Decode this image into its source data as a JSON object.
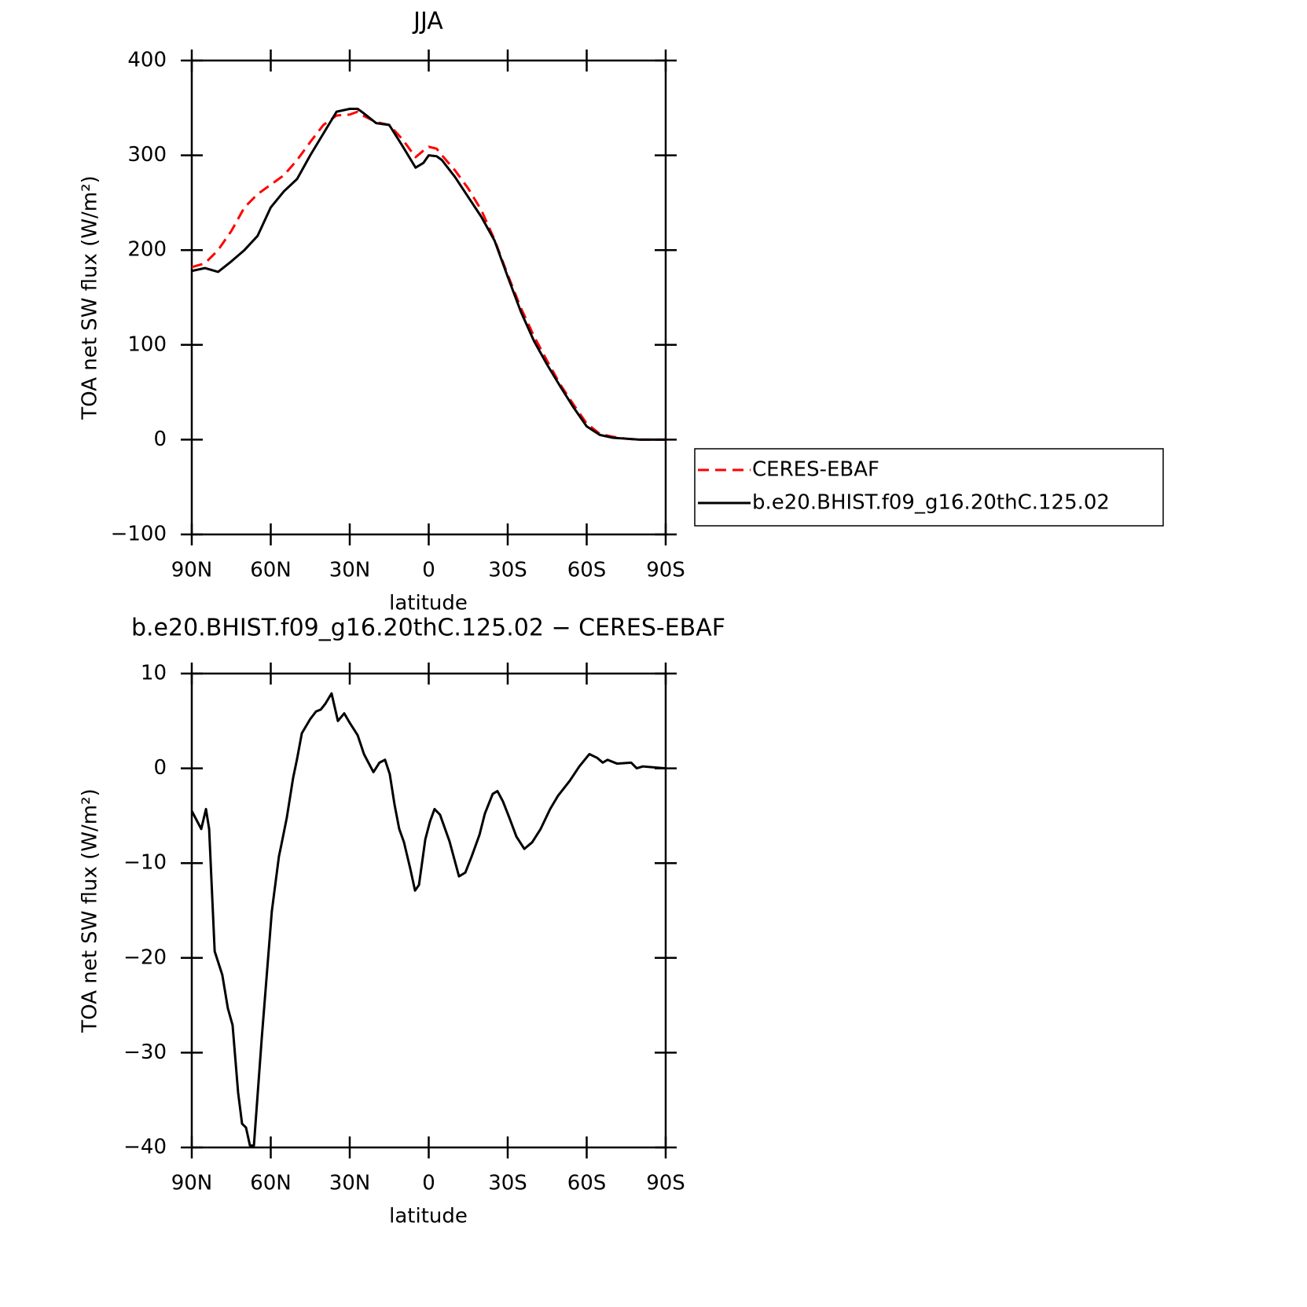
{
  "chart_data": [
    {
      "type": "line",
      "title": "JJA",
      "xlabel": "latitude",
      "ylabel": "TOA net SW flux (W/m²)",
      "xlim": [
        90,
        -90
      ],
      "xticks": [
        {
          "value": 90,
          "label": "90N"
        },
        {
          "value": 60,
          "label": "60N"
        },
        {
          "value": 30,
          "label": "30N"
        },
        0,
        {
          "value": -30,
          "label": "30S"
        },
        {
          "value": -60,
          "label": "60S"
        },
        {
          "value": -90,
          "label": "90S"
        }
      ],
      "ylim": [
        -100,
        400
      ],
      "yticks": [
        {
          "value": -100,
          "label": "−100"
        },
        0,
        100,
        200,
        300,
        400
      ],
      "legend_position": "right",
      "x": [
        90,
        85,
        80,
        75,
        70,
        65,
        60,
        55,
        50,
        45,
        40,
        35,
        30,
        27,
        25,
        20,
        15,
        10,
        5,
        2,
        0,
        -3,
        -5,
        -10,
        -15,
        -20,
        -25,
        -30,
        -35,
        -40,
        -45,
        -50,
        -55,
        -60,
        -65,
        -70,
        -75,
        -80,
        -85,
        -90
      ],
      "series": [
        {
          "name": "CERES-EBAF",
          "color": "#ff0000",
          "dash": "dashed",
          "values": [
            182,
            186,
            200,
            220,
            245,
            259,
            269,
            279,
            295,
            314,
            332,
            342,
            343,
            346,
            342,
            335,
            332,
            317,
            298,
            305,
            309,
            307,
            300,
            284,
            265,
            242,
            211,
            174,
            139,
            109,
            83,
            58,
            37,
            17,
            6,
            3,
            1,
            0,
            0,
            0
          ]
        },
        {
          "name": "b.e20.BHIST.f09_g16.20thC.125.02",
          "color": "#000000",
          "dash": "solid",
          "values": [
            178,
            181,
            177,
            188,
            200,
            215,
            245,
            262,
            275,
            300,
            323,
            346,
            349,
            349,
            345,
            334,
            332,
            310,
            287,
            292,
            300,
            299,
            295,
            277,
            256,
            235,
            210,
            172,
            135,
            104,
            79,
            56,
            34,
            14,
            5,
            2,
            1,
            0,
            0,
            0
          ]
        }
      ]
    },
    {
      "type": "line",
      "title": "b.e20.BHIST.f09_g16.20thC.125.02 − CERES-EBAF",
      "xlabel": "latitude",
      "ylabel": "TOA net SW flux (W/m²)",
      "xlim": [
        90,
        -90
      ],
      "xticks": [
        {
          "value": 90,
          "label": "90N"
        },
        {
          "value": 60,
          "label": "60N"
        },
        {
          "value": 30,
          "label": "30N"
        },
        0,
        {
          "value": -30,
          "label": "30S"
        },
        {
          "value": -60,
          "label": "60S"
        },
        {
          "value": -90,
          "label": "90S"
        }
      ],
      "ylim": [
        -40,
        10
      ],
      "yticks": [
        {
          "value": -40,
          "label": "−40"
        },
        {
          "value": -30,
          "label": "−30"
        },
        {
          "value": -20,
          "label": "−20"
        },
        {
          "value": -10,
          "label": "−10"
        },
        0,
        10
      ],
      "x": [
        90,
        86.4,
        84.6,
        83.4,
        81.3,
        78.4,
        76.3,
        74.5,
        72.4,
        70.9,
        69.4,
        67.9,
        66.4,
        63.4,
        59.6,
        56.9,
        56,
        53.9,
        51.5,
        50,
        48.2,
        45,
        42.8,
        41,
        39.3,
        36.9,
        34.5,
        32.1,
        30,
        27,
        24.6,
        21,
        18.7,
        16.6,
        14.8,
        13,
        11.2,
        9.4,
        7,
        5.2,
        3.7,
        1.3,
        -0.5,
        -2.2,
        -4.3,
        -7.9,
        -11.5,
        -13.9,
        -16.3,
        -19.3,
        -21.3,
        -24.3,
        -26.1,
        -28.2,
        -30.6,
        -33.3,
        -36.3,
        -39.3,
        -42.5,
        -46.1,
        -49.1,
        -53.6,
        -57.2,
        -61,
        -64,
        -66.1,
        -67.9,
        -71.5,
        -76.9,
        -79,
        -81.3,
        -90
      ],
      "series": [
        {
          "name": "b.e20.BHIST.f09_g16.20thC.125.02 − CERES-EBAF",
          "color": "#000000",
          "dash": "solid",
          "values": [
            -4.5,
            -6.4,
            -4.3,
            -6.4,
            -19.3,
            -21.8,
            -25.3,
            -27.1,
            -34.2,
            -37.5,
            -37.9,
            -39.8,
            -39.8,
            -28.4,
            -15.1,
            -9.3,
            -8.1,
            -5.2,
            -1,
            1,
            3.7,
            5.2,
            6,
            6.2,
            6.8,
            7.9,
            5,
            5.8,
            4.8,
            3.5,
            1.5,
            -0.4,
            0.6,
            0.9,
            -0.6,
            -3.8,
            -6.4,
            -7.8,
            -10.6,
            -12.9,
            -12.3,
            -7.5,
            -5.6,
            -4.3,
            -4.9,
            -7.7,
            -11.4,
            -11,
            -9.3,
            -7,
            -4.8,
            -2.7,
            -2.4,
            -3.5,
            -5.2,
            -7.2,
            -8.5,
            -7.8,
            -6.4,
            -4.3,
            -2.9,
            -1.3,
            0.2,
            1.5,
            1.1,
            0.6,
            0.9,
            0.5,
            0.6,
            0,
            0.2,
            0
          ]
        }
      ]
    }
  ]
}
